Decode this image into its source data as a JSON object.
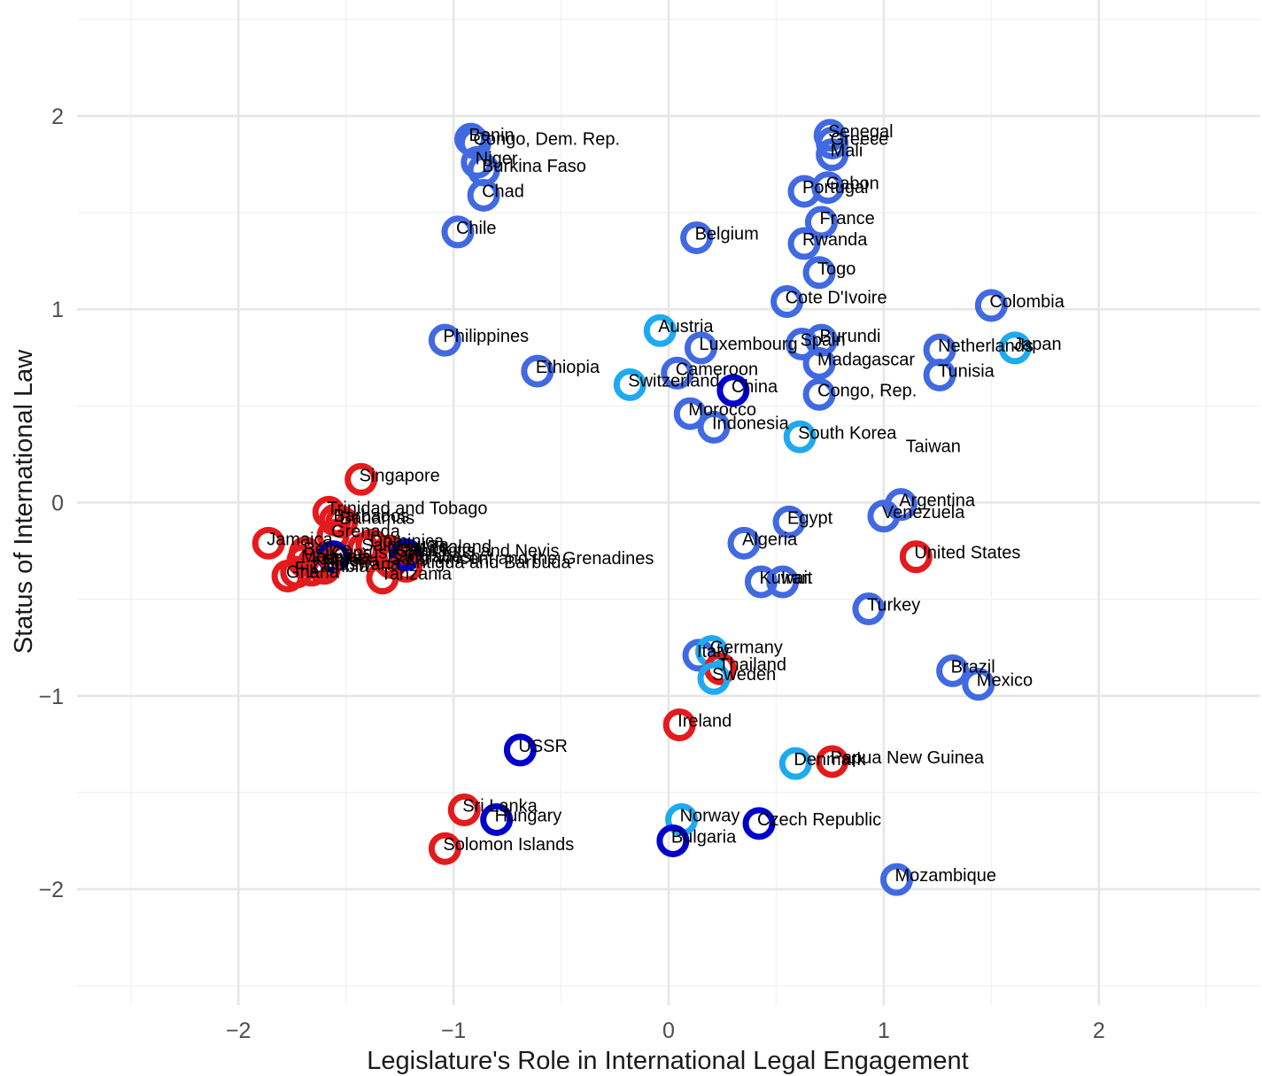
{
  "chart_data": {
    "type": "scatter",
    "xlabel": "Legislature's Role in International Legal Engagement",
    "ylabel": "Status of International Law",
    "xlim": [
      -2.75,
      2.75
    ],
    "ylim": [
      -2.6,
      2.6
    ],
    "x_ticks": [
      "−2",
      "−1",
      "0",
      "1",
      "2"
    ],
    "x_tick_values": [
      -2,
      -1,
      0,
      1,
      2
    ],
    "y_ticks": [
      "−2",
      "−1",
      "0",
      "1",
      "2"
    ],
    "y_tick_values": [
      -2,
      -1,
      0,
      1,
      2
    ],
    "grid": true,
    "marker": "open-circle",
    "colors": {
      "red": "#e41a1c",
      "royal": "#4169e1",
      "navy": "#0000cd",
      "sky": "#1eaaf0"
    },
    "points": [
      {
        "label": "Benin",
        "x": -0.92,
        "y": 1.88,
        "color": "royal"
      },
      {
        "label": "Congo, Dem. Rep.",
        "x": -0.9,
        "y": 1.86,
        "color": "royal"
      },
      {
        "label": "Niger",
        "x": -0.89,
        "y": 1.76,
        "color": "royal"
      },
      {
        "label": "Burkina Faso",
        "x": -0.86,
        "y": 1.72,
        "color": "royal"
      },
      {
        "label": "Chad",
        "x": -0.86,
        "y": 1.59,
        "color": "royal"
      },
      {
        "label": "Chile",
        "x": -0.98,
        "y": 1.4,
        "color": "royal"
      },
      {
        "label": "Philippines",
        "x": -1.04,
        "y": 0.84,
        "color": "royal"
      },
      {
        "label": "Ethiopia",
        "x": -0.61,
        "y": 0.68,
        "color": "royal"
      },
      {
        "label": "Senegal",
        "x": 0.75,
        "y": 1.9,
        "color": "royal"
      },
      {
        "label": "Greece",
        "x": 0.76,
        "y": 1.86,
        "color": "royal"
      },
      {
        "label": "Mali",
        "x": 0.76,
        "y": 1.8,
        "color": "royal"
      },
      {
        "label": "Gabon",
        "x": 0.74,
        "y": 1.63,
        "color": "royal"
      },
      {
        "label": "Portugal",
        "x": 0.63,
        "y": 1.61,
        "color": "royal"
      },
      {
        "label": "France",
        "x": 0.71,
        "y": 1.45,
        "color": "royal"
      },
      {
        "label": "Rwanda",
        "x": 0.63,
        "y": 1.34,
        "color": "royal"
      },
      {
        "label": "Togo",
        "x": 0.7,
        "y": 1.19,
        "color": "royal"
      },
      {
        "label": "Belgium",
        "x": 0.13,
        "y": 1.37,
        "color": "royal"
      },
      {
        "label": "Cote D'Ivoire",
        "x": 0.55,
        "y": 1.04,
        "color": "royal"
      },
      {
        "label": "Colombia",
        "x": 1.5,
        "y": 1.02,
        "color": "royal"
      },
      {
        "label": "Austria",
        "x": -0.04,
        "y": 0.89,
        "color": "sky"
      },
      {
        "label": "Luxembourg",
        "x": 0.15,
        "y": 0.8,
        "color": "royal"
      },
      {
        "label": "Burundi",
        "x": 0.71,
        "y": 0.84,
        "color": "royal"
      },
      {
        "label": "Spain",
        "x": 0.62,
        "y": 0.82,
        "color": "royal"
      },
      {
        "label": "Madagascar",
        "x": 0.7,
        "y": 0.72,
        "color": "royal"
      },
      {
        "label": "Netherlands",
        "x": 1.26,
        "y": 0.79,
        "color": "royal"
      },
      {
        "label": "Japan",
        "x": 1.61,
        "y": 0.8,
        "color": "sky"
      },
      {
        "label": "Tunisia",
        "x": 1.26,
        "y": 0.66,
        "color": "royal"
      },
      {
        "label": "Cameroon",
        "x": 0.04,
        "y": 0.67,
        "color": "royal"
      },
      {
        "label": "Switzerland",
        "x": -0.18,
        "y": 0.61,
        "color": "sky"
      },
      {
        "label": "China",
        "x": 0.3,
        "y": 0.58,
        "color": "navy"
      },
      {
        "label": "Congo, Rep.",
        "x": 0.7,
        "y": 0.56,
        "color": "royal"
      },
      {
        "label": "Morocco",
        "x": 0.1,
        "y": 0.46,
        "color": "royal"
      },
      {
        "label": "Indonesia",
        "x": 0.21,
        "y": 0.39,
        "color": "royal"
      },
      {
        "label": "South Korea",
        "x": 0.61,
        "y": 0.34,
        "color": "sky"
      },
      {
        "label": "Taiwan",
        "x": 1.11,
        "y": 0.27,
        "color": "none"
      },
      {
        "label": "Singapore",
        "x": -1.43,
        "y": 0.12,
        "color": "red"
      },
      {
        "label": "Trinidad and Tobago",
        "x": -1.58,
        "y": -0.05,
        "color": "red"
      },
      {
        "label": "Barbados",
        "x": -1.55,
        "y": -0.09,
        "color": "red"
      },
      {
        "label": "Bahamas",
        "x": -1.52,
        "y": -0.1,
        "color": "red"
      },
      {
        "label": "Grenada",
        "x": -1.56,
        "y": -0.17,
        "color": "red"
      },
      {
        "label": "Jamaica",
        "x": -1.86,
        "y": -0.21,
        "color": "red"
      },
      {
        "label": "Dominica",
        "x": -1.38,
        "y": -0.22,
        "color": "red"
      },
      {
        "label": "Saint Lucia",
        "x": -1.42,
        "y": -0.24,
        "color": "red"
      },
      {
        "label": "New Zealand",
        "x": -1.3,
        "y": -0.25,
        "color": "red"
      },
      {
        "label": "Saint Kitts and Nevis",
        "x": -1.26,
        "y": -0.27,
        "color": "red"
      },
      {
        "label": "Saint Vincent and the Grenadines",
        "x": -1.29,
        "y": -0.31,
        "color": "red"
      },
      {
        "label": "Bangladesh",
        "x": -1.3,
        "y": -0.3,
        "color": "red"
      },
      {
        "label": "Malaysia",
        "x": -1.7,
        "y": -0.3,
        "color": "red"
      },
      {
        "label": "Kenya",
        "x": -1.65,
        "y": -0.31,
        "color": "red"
      },
      {
        "label": "Nigeria",
        "x": -1.6,
        "y": -0.32,
        "color": "red"
      },
      {
        "label": "Belize",
        "x": -1.69,
        "y": -0.26,
        "color": "red"
      },
      {
        "label": "Cyprus",
        "x": -1.56,
        "y": -0.28,
        "color": "navy"
      },
      {
        "label": "Malta",
        "x": -1.22,
        "y": -0.27,
        "color": "navy"
      },
      {
        "label": "Antigua and Barbuda",
        "x": -1.22,
        "y": -0.33,
        "color": "red"
      },
      {
        "label": "Ghana",
        "x": -1.77,
        "y": -0.38,
        "color": "red"
      },
      {
        "label": "Fiji",
        "x": -1.73,
        "y": -0.36,
        "color": "red"
      },
      {
        "label": "Zambia",
        "x": -1.66,
        "y": -0.35,
        "color": "red"
      },
      {
        "label": "Botswana",
        "x": -1.6,
        "y": -0.34,
        "color": "red"
      },
      {
        "label": "Tanzania",
        "x": -1.33,
        "y": -0.39,
        "color": "red"
      },
      {
        "label": "Egypt",
        "x": 0.56,
        "y": -0.1,
        "color": "royal"
      },
      {
        "label": "Argentina",
        "x": 1.08,
        "y": -0.01,
        "color": "royal"
      },
      {
        "label": "Venezuela",
        "x": 1.0,
        "y": -0.07,
        "color": "royal"
      },
      {
        "label": "United States",
        "x": 1.15,
        "y": -0.28,
        "color": "red"
      },
      {
        "label": "Algeria",
        "x": 0.35,
        "y": -0.21,
        "color": "royal"
      },
      {
        "label": "Kuwait",
        "x": 0.43,
        "y": -0.41,
        "color": "royal"
      },
      {
        "label": "Iran",
        "x": 0.53,
        "y": -0.41,
        "color": "royal"
      },
      {
        "label": "Turkey",
        "x": 0.93,
        "y": -0.55,
        "color": "royal"
      },
      {
        "label": "Italy",
        "x": 0.14,
        "y": -0.79,
        "color": "royal"
      },
      {
        "label": "Germany",
        "x": 0.2,
        "y": -0.77,
        "color": "sky"
      },
      {
        "label": "Thailand",
        "x": 0.24,
        "y": -0.86,
        "color": "red"
      },
      {
        "label": "Sweden",
        "x": 0.21,
        "y": -0.91,
        "color": "sky"
      },
      {
        "label": "Brazil",
        "x": 1.32,
        "y": -0.87,
        "color": "royal"
      },
      {
        "label": "Mexico",
        "x": 1.44,
        "y": -0.94,
        "color": "royal"
      },
      {
        "label": "Ireland",
        "x": 0.05,
        "y": -1.15,
        "color": "red"
      },
      {
        "label": "USSR",
        "x": -0.69,
        "y": -1.28,
        "color": "navy"
      },
      {
        "label": "Denmark",
        "x": 0.59,
        "y": -1.35,
        "color": "sky"
      },
      {
        "label": "Papua New Guinea",
        "x": 0.76,
        "y": -1.34,
        "color": "red"
      },
      {
        "label": "Sri Lanka",
        "x": -0.95,
        "y": -1.59,
        "color": "red"
      },
      {
        "label": "Hungary",
        "x": -0.8,
        "y": -1.64,
        "color": "navy"
      },
      {
        "label": "Solomon Islands",
        "x": -1.04,
        "y": -1.79,
        "color": "red"
      },
      {
        "label": "Norway",
        "x": 0.06,
        "y": -1.64,
        "color": "sky"
      },
      {
        "label": "Bulgaria",
        "x": 0.02,
        "y": -1.75,
        "color": "navy"
      },
      {
        "label": "Czech Republic",
        "x": 0.42,
        "y": -1.66,
        "color": "navy"
      },
      {
        "label": "Mozambique",
        "x": 1.06,
        "y": -1.95,
        "color": "royal"
      }
    ]
  }
}
